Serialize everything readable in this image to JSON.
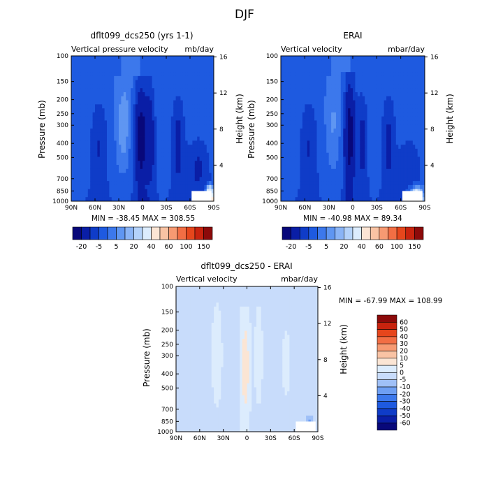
{
  "figure": {
    "title": "DJF"
  },
  "colors": {
    "scale_top": [
      "#08087a",
      "#0a1ea6",
      "#0f3cc8",
      "#1e5ae0",
      "#3c78ec",
      "#5f96f2",
      "#8ab4f6",
      "#b4d2fa",
      "#dcecfd",
      "#fbe5d4",
      "#f9c3a4",
      "#f79a72",
      "#f26e44",
      "#e6461c",
      "#c8230e",
      "#8c0a0a"
    ],
    "scale_diff": [
      "#08087a",
      "#0a1ea6",
      "#0f3cc8",
      "#1e5ae0",
      "#3c78ec",
      "#6e9ff3",
      "#9fc0f7",
      "#c8dcfb",
      "#dcecfd",
      "#fbe5d4",
      "#f9c3a4",
      "#f79a72",
      "#f26e44",
      "#e6461c",
      "#c8230e",
      "#8c0a0a"
    ]
  },
  "chart_data": [
    {
      "id": "panel_model",
      "type": "heatmap",
      "title": "dflt099_dcs250 (yrs 1-1)",
      "left_label": "Vertical pressure velocity",
      "right_label": "mb/day",
      "ylabel": "Pressure (mb)",
      "y2label": "Height (km)",
      "x_ticks": [
        "90N",
        "60N",
        "30N",
        "0",
        "30S",
        "60S",
        "90S"
      ],
      "y_ticks": [
        "100",
        "150",
        "200",
        "250",
        "300",
        "400",
        "500",
        "700",
        "850",
        "1000"
      ],
      "y2_ticks": [
        "16",
        "12",
        "8",
        "4"
      ],
      "stats": "MIN = -38.45   MAX = 308.55",
      "colorbar_labels": [
        "-20",
        "-5",
        "5",
        "20",
        "40",
        "60",
        "100",
        "150"
      ],
      "features": {
        "bands": [
          {
            "lat": 25,
            "width": 10,
            "value": 8,
            "top": 0.15
          },
          {
            "lat": 2,
            "width": 8,
            "value": -35,
            "top": 0.15
          },
          {
            "lat": -10,
            "width": 6,
            "value": -18,
            "top": 0.15
          },
          {
            "lat": -45,
            "width": 8,
            "value": -15,
            "top": 0.2
          },
          {
            "lat": 55,
            "width": 10,
            "value": -12,
            "top": 0.25
          },
          {
            "lat": -70,
            "width": 12,
            "value": -12,
            "top": 0.55
          }
        ],
        "surface_warm": {
          "lat": -85,
          "width": 5,
          "value": 60
        }
      }
    },
    {
      "id": "panel_obs",
      "type": "heatmap",
      "title": "ERAI",
      "left_label": "Vertical velocity",
      "right_label": "mbar/day",
      "ylabel": "Pressure (mb)",
      "y2label": "Height (km)",
      "x_ticks": [
        "90N",
        "60N",
        "30N",
        "0",
        "30S",
        "60S",
        "90S"
      ],
      "y_ticks": [
        "100",
        "150",
        "200",
        "250",
        "300",
        "400",
        "500",
        "700",
        "850",
        "1000"
      ],
      "y2_ticks": [
        "16",
        "12",
        "8",
        "4"
      ],
      "stats": "MIN = -40.98   MAX = 89.34",
      "colorbar_labels": [
        "-20",
        "-5",
        "5",
        "20",
        "40",
        "60",
        "100",
        "150"
      ],
      "features": {
        "bands": [
          {
            "lat": 25,
            "width": 10,
            "value": 6,
            "top": 0.15
          },
          {
            "lat": 4,
            "width": 7,
            "value": -35,
            "top": 0.12
          },
          {
            "lat": -12,
            "width": 6,
            "value": -15,
            "top": 0.2
          },
          {
            "lat": -45,
            "width": 8,
            "value": -14,
            "top": 0.2
          },
          {
            "lat": 55,
            "width": 10,
            "value": -12,
            "top": 0.25
          },
          {
            "lat": -70,
            "width": 12,
            "value": -10,
            "top": 0.55
          }
        ],
        "surface_warm": {
          "lat": -80,
          "width": 9,
          "value": 45
        }
      }
    },
    {
      "id": "panel_diff",
      "type": "heatmap",
      "title": "dflt099_dcs250 - ERAI",
      "left_label": "Vertical velocity",
      "right_label": "mbar/day",
      "ylabel": "Pressure (mb)",
      "y2label": "Height (km)",
      "x_ticks": [
        "90N",
        "60N",
        "30N",
        "0",
        "30S",
        "60S",
        "90S"
      ],
      "y_ticks": [
        "100",
        "150",
        "200",
        "250",
        "300",
        "400",
        "500",
        "700",
        "850",
        "1000"
      ],
      "y2_ticks": [
        "16",
        "12",
        "8",
        "4"
      ],
      "stats": "MIN = -67.99   MAX = 108.99",
      "colorbar_labels": [
        "60",
        "50",
        "40",
        "30",
        "20",
        "10",
        "5",
        "0",
        "-5",
        "-10",
        "-20",
        "-30",
        "-40",
        "-50",
        "-60"
      ],
      "features": {
        "bands": [
          {
            "lat": 2,
            "width": 6,
            "value": 10,
            "top": 0.15
          },
          {
            "lat": 38,
            "width": 8,
            "value": 3,
            "top": 0.0
          },
          {
            "lat": -15,
            "width": 6,
            "value": 3,
            "top": 0.0
          },
          {
            "lat": -50,
            "width": 10,
            "value": 2,
            "top": 0.1
          },
          {
            "lat": 70,
            "width": 10,
            "value": -3,
            "top": 0.3
          }
        ],
        "surface_warm": {
          "lat": -80,
          "width": 5,
          "value": -20
        }
      }
    }
  ]
}
